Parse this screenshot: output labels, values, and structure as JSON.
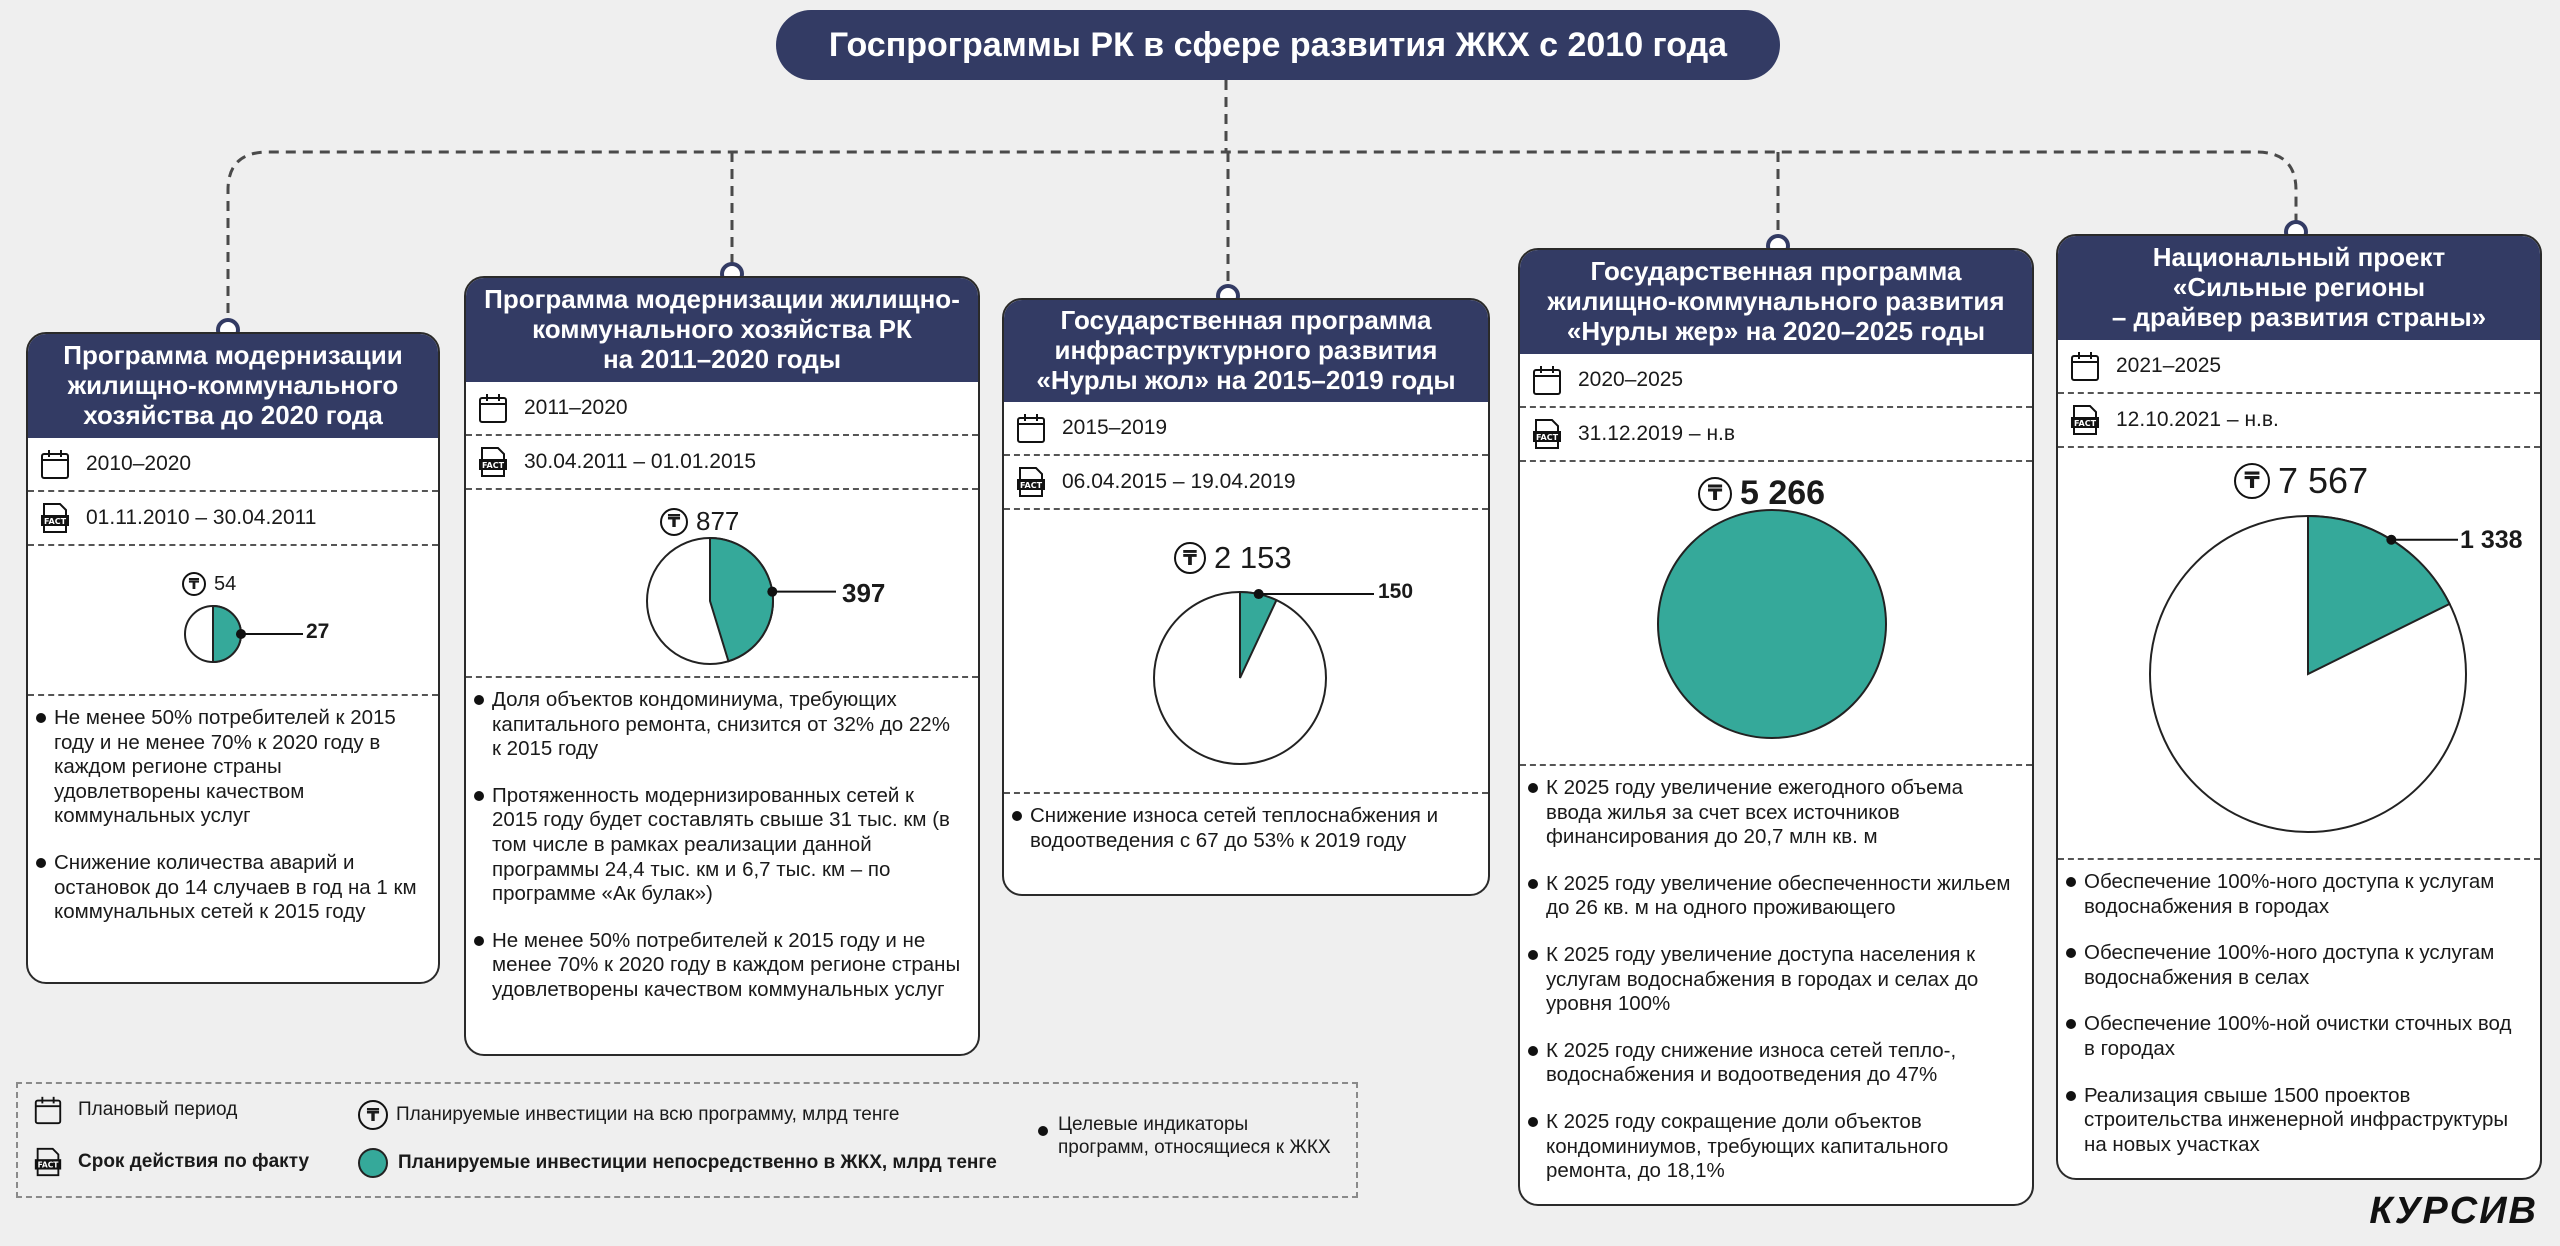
{
  "title": "Госпрограммы РК в сфере развития ЖКХ с 2010 года",
  "colors": {
    "header": "#333b64",
    "accent": "#35a99a"
  },
  "programs": [
    {
      "header": "Программа модернизации\nжилищно-коммунального\nхозяйства до 2020 года",
      "planned_period": "2010–2020",
      "actual_period": "01.11.2010 – 30.04.2011",
      "total": "54",
      "housing": "27",
      "indicators": [
        "Не менее 50% потребителей к 2015 году и не менее 70% к 2020 году в каждом регионе страны удовлетворены качеством коммунальных услуг",
        "Снижение количества аварий и остановок до 14 случаев в год на 1 км коммунальных сетей к 2015 году"
      ]
    },
    {
      "header": "Программа модернизации жилищно-\nкоммунального хозяйства РК\nна 2011–2020 годы",
      "planned_period": "2011–2020",
      "actual_period": "30.04.2011 – 01.01.2015",
      "total": "877",
      "housing": "397",
      "indicators": [
        "Доля объектов кондоминиума, требующих капитального ремонта, снизится от 32% до 22% к 2015 году",
        "Протяженность модернизированных сетей к 2015 году будет составлять свыше 31 тыс. км (в том числе в рамках реализации данной программы 24,4 тыс. км и 6,7 тыс. км – по программе «Ак булак»)",
        "Не менее 50% потребителей к 2015 году и не менее 70% к 2020 году в каждом регионе страны удовлетворены качеством коммунальных услуг"
      ]
    },
    {
      "header": "Государственная программа\nинфраструктурного развития\n«Нурлы жол» на 2015–2019 годы",
      "planned_period": "2015–2019",
      "actual_period": "06.04.2015 – 19.04.2019",
      "total": "2 153",
      "housing": "150",
      "indicators": [
        "Снижение износа сетей теплоснабжения и водоотведения с 67 до 53% к 2019 году"
      ]
    },
    {
      "header": "Государственная программа\nжилищно-коммунального развития\n«Нурлы жер» на 2020–2025 годы",
      "planned_period": "2020–2025",
      "actual_period": "31.12.2019 – н.в",
      "total": "5 266",
      "housing": "",
      "indicators": [
        "К 2025 году увеличение ежегодного объема ввода жилья за счет всех источников финансирования до 20,7 млн кв. м",
        "К 2025 году увеличение обеспеченности жильем до 26 кв. м на одного проживающего",
        "К 2025 году увеличение доступа населения к услугам водоснабжения в городах и селах до уровня 100%",
        "К 2025 году снижение износа сетей тепло-, водоснабжения и водоотведения до 47%",
        "К 2025 году сокращение доли объектов кондоминиумов, требующих капитального ремонта, до 18,1%"
      ]
    },
    {
      "header": "Национальный проект\n«Сильные регионы\n– драйвер развития страны»",
      "planned_period": "2021–2025",
      "actual_period": "12.10.2021 – н.в.",
      "total": "7 567",
      "housing": "1 338",
      "indicators": [
        "Обеспечение 100%-ного доступа к услугам водоснабжения в городах",
        "Обеспечение 100%-ного доступа к услугам водоснабжения в селах",
        "Обеспечение 100%-ной очистки сточных вод в городах",
        "Реализация свыше 1500 проектов строительства инженерной инфраструктуры на новых участках"
      ]
    }
  ],
  "chart_data": {
    "type": "pie",
    "unit": "млрд тенге",
    "charts": [
      {
        "total": 54,
        "housing": 27
      },
      {
        "total": 877,
        "housing": 397
      },
      {
        "total": 2153,
        "housing": 150
      },
      {
        "total": 5266,
        "housing": 5266
      },
      {
        "total": 7567,
        "housing": 1338
      }
    ]
  },
  "legend": {
    "planned_period": "Плановый период",
    "actual_period": "Срок действия по факту",
    "total_investment": "Планируемые инвестиции на всю программу, млрд тенге",
    "housing_investment": "Планируемые инвестиции непосредственно в ЖКХ, млрд тенге",
    "indicators": "Целевые индикаторы программ, относящиеся к ЖКХ"
  },
  "logo": "КУРСИВ",
  "icons": {
    "calendar": "calendar-icon",
    "fact": "fact-doc-icon",
    "tenge": "tenge-icon"
  }
}
